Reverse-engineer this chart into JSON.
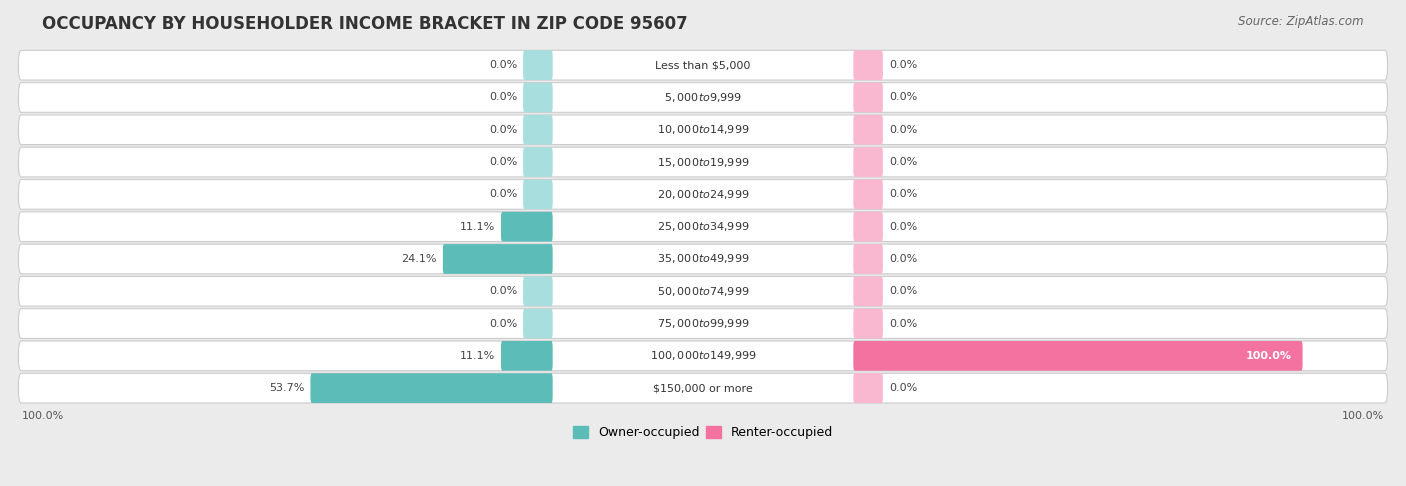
{
  "title": "OCCUPANCY BY HOUSEHOLDER INCOME BRACKET IN ZIP CODE 95607",
  "source": "Source: ZipAtlas.com",
  "categories": [
    "Less than $5,000",
    "$5,000 to $9,999",
    "$10,000 to $14,999",
    "$15,000 to $19,999",
    "$20,000 to $24,999",
    "$25,000 to $34,999",
    "$35,000 to $49,999",
    "$50,000 to $74,999",
    "$75,000 to $99,999",
    "$100,000 to $149,999",
    "$150,000 or more"
  ],
  "owner_values": [
    0.0,
    0.0,
    0.0,
    0.0,
    0.0,
    11.1,
    24.1,
    0.0,
    0.0,
    11.1,
    53.7
  ],
  "renter_values": [
    0.0,
    0.0,
    0.0,
    0.0,
    0.0,
    0.0,
    0.0,
    0.0,
    0.0,
    100.0,
    0.0
  ],
  "owner_color": "#5bbcb8",
  "renter_color": "#f472a0",
  "owner_color_light": "#a8dedd",
  "renter_color_light": "#f9b8d0",
  "owner_label": "Owner-occupied",
  "renter_label": "Renter-occupied",
  "background_color": "#ebebeb",
  "row_bg_color": "#ffffff",
  "title_fontsize": 12,
  "source_fontsize": 8.5,
  "label_fontsize": 8,
  "bar_label_fontsize": 8,
  "max_value": 100.0
}
